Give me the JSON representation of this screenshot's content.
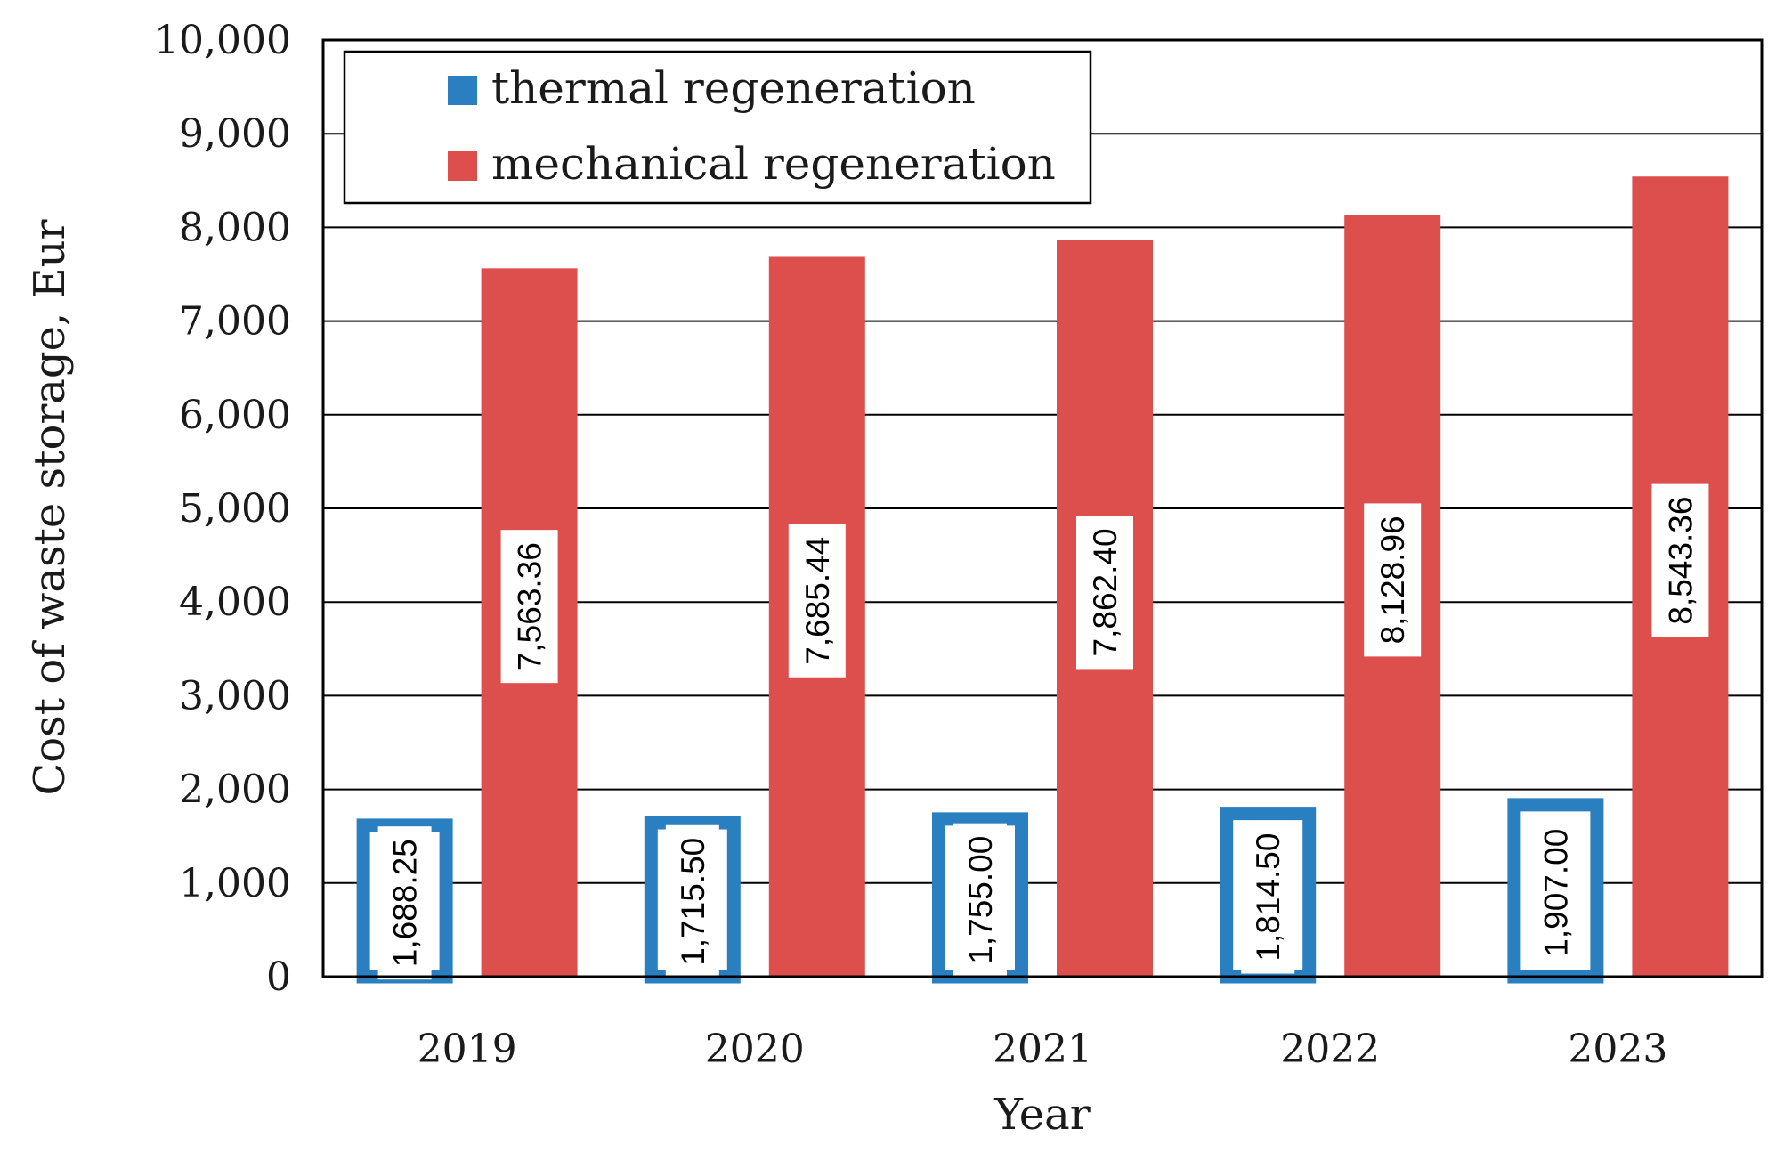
{
  "chart_data": {
    "type": "bar",
    "title": "",
    "xlabel": "Year",
    "ylabel": "Cost of waste storage, Eur",
    "categories": [
      "2019",
      "2020",
      "2021",
      "2022",
      "2023"
    ],
    "series": [
      {
        "name": "thermal regeneration",
        "color": "#2a7fc0",
        "values": [
          1688.25,
          1715.5,
          1755.0,
          1814.5,
          1907.0
        ],
        "labels": [
          "1,688.25",
          "1,715.50",
          "1,755.00",
          "1,814.50",
          "1,907.00"
        ]
      },
      {
        "name": "mechanical regeneration",
        "color": "#dc4f4d",
        "values": [
          7563.36,
          7685.44,
          7862.4,
          8128.96,
          8543.36
        ],
        "labels": [
          "7,563.36",
          "7,685.44",
          "7,862.40",
          "8,128.96",
          "8,543.36"
        ]
      }
    ],
    "ylim": [
      0,
      10000
    ],
    "yticks": [
      0,
      1000,
      2000,
      3000,
      4000,
      5000,
      6000,
      7000,
      8000,
      9000,
      10000
    ],
    "ytick_labels": [
      "0",
      "1,000",
      "2,000",
      "3,000",
      "4,000",
      "5,000",
      "6,000",
      "7,000",
      "8,000",
      "9,000",
      "10,000"
    ],
    "grid": true,
    "legend_position": "top-left"
  }
}
